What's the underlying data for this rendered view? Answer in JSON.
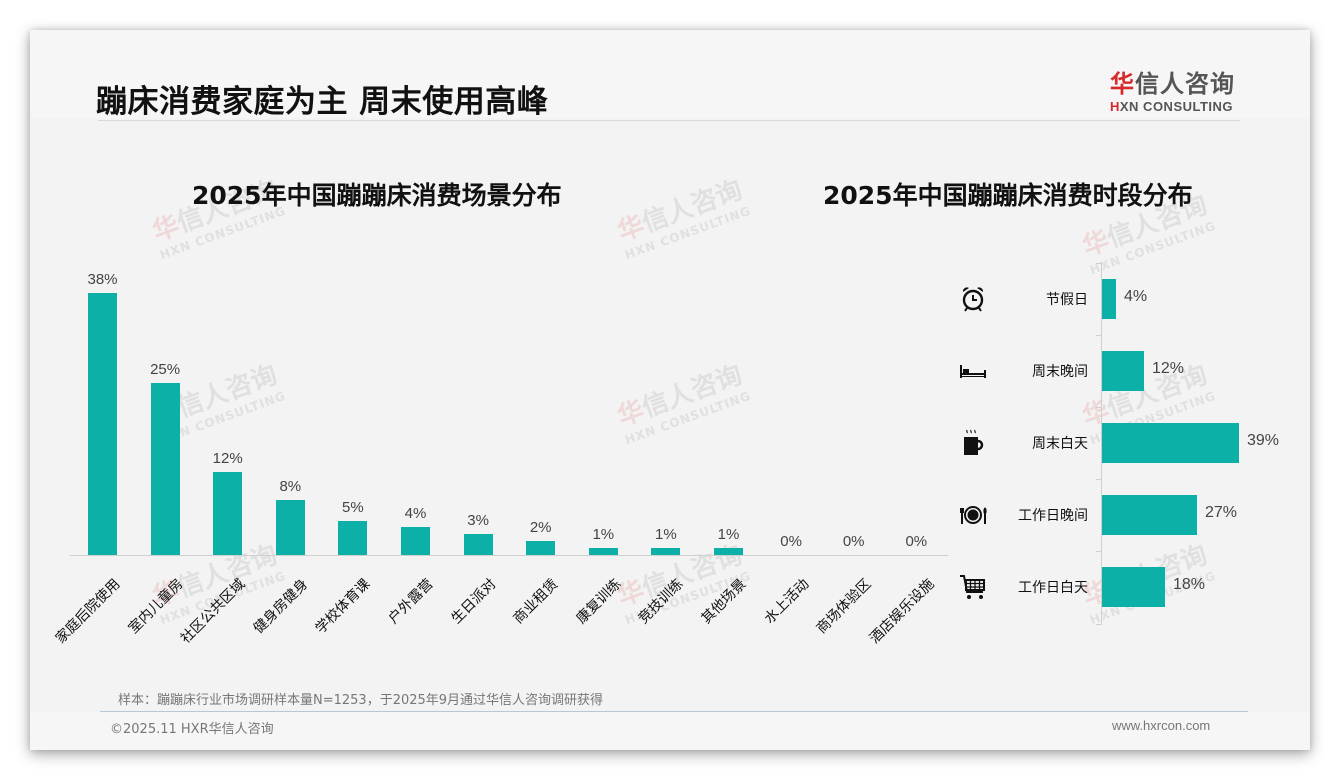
{
  "header": {
    "title": "蹦床消费家庭为主 周末使用高峰",
    "logo_cn_first": "华",
    "logo_cn_rest": "信人咨询",
    "logo_en_first": "H",
    "logo_en_rest": "XN CONSULTING"
  },
  "watermark": {
    "cn_first": "华",
    "cn_rest": "信人咨询",
    "en": "HXN CONSULTING"
  },
  "colors": {
    "bar": "#0db0a6",
    "logo_red": "#d62a2a",
    "background": "#f3f3f3"
  },
  "chart_data": [
    {
      "type": "bar",
      "title": "2025年中国蹦蹦床消费场景分布",
      "categories": [
        "家庭后院使用",
        "室内儿童房",
        "社区公共区域",
        "健身房健身",
        "学校体育课",
        "户外露营",
        "生日派对",
        "商业租赁",
        "康复训练",
        "竞技训练",
        "其他场景",
        "水上活动",
        "商场体验区",
        "酒店娱乐设施"
      ],
      "values": [
        38,
        25,
        12,
        8,
        5,
        4,
        3,
        2,
        1,
        1,
        1,
        0,
        0,
        0
      ],
      "value_labels": [
        "38%",
        "25%",
        "12%",
        "8%",
        "5%",
        "4%",
        "3%",
        "2%",
        "1%",
        "1%",
        "1%",
        "0%",
        "0%",
        "0%"
      ],
      "xlabel": "",
      "ylabel": "",
      "unit": "%",
      "grid": false,
      "legend": null
    },
    {
      "type": "bar",
      "orientation": "horizontal",
      "title": "2025年中国蹦蹦床消费时段分布",
      "categories": [
        "节假日",
        "周末晚间",
        "周末白天",
        "工作日晚间",
        "工作日白天"
      ],
      "icons": [
        "alarm-clock-icon",
        "bed-icon",
        "coffee-cup-icon",
        "dinner-plate-icon",
        "shopping-cart-icon"
      ],
      "values": [
        4,
        12,
        39,
        27,
        18
      ],
      "value_labels": [
        "4%",
        "12%",
        "39%",
        "27%",
        "18%"
      ],
      "xlabel": "",
      "ylabel": "",
      "unit": "%",
      "grid": false,
      "legend": null
    }
  ],
  "footer": {
    "note": "样本：蹦蹦床行业市场调研样本量N=1253，于2025年9月通过华信人咨询调研获得",
    "copyright": "©2025.11 HXR华信人咨询",
    "website": "www.hxrcon.com"
  }
}
